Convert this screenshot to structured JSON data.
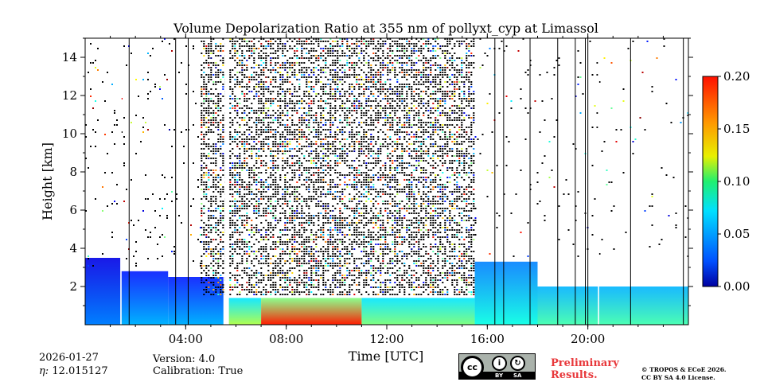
{
  "chart_data": {
    "type": "heatmap",
    "title": "Volume Depolarization Ratio at 355 nm of pollyxt_cyp at Limassol",
    "xlabel": "Time [UTC]",
    "ylabel": "Height [km]",
    "x_range_hours": [
      0,
      24
    ],
    "y_range_km": [
      0,
      15
    ],
    "x_ticks": [
      {
        "hour": 4,
        "label": "04:00"
      },
      {
        "hour": 8,
        "label": "08:00"
      },
      {
        "hour": 12,
        "label": "12:00"
      },
      {
        "hour": 16,
        "label": "16:00"
      },
      {
        "hour": 20,
        "label": "20:00"
      }
    ],
    "y_ticks": [
      {
        "value": 2,
        "label": "2"
      },
      {
        "value": 4,
        "label": "4"
      },
      {
        "value": 6,
        "label": "6"
      },
      {
        "value": 8,
        "label": "8"
      },
      {
        "value": 10,
        "label": "10"
      },
      {
        "value": 12,
        "label": "12"
      },
      {
        "value": 14,
        "label": "14"
      }
    ],
    "colorbar": {
      "range": [
        0.0,
        0.2
      ],
      "ticks": [
        {
          "value": 0.0,
          "label": "0.00"
        },
        {
          "value": 0.05,
          "label": "0.05"
        },
        {
          "value": 0.1,
          "label": "0.10"
        },
        {
          "value": 0.15,
          "label": "0.15"
        },
        {
          "value": 0.2,
          "label": "0.20"
        }
      ],
      "colormap": "jet"
    },
    "field_regions": [
      {
        "t0": 0.0,
        "t1": 1.4,
        "h_top": 3.5,
        "val_high": 0.02,
        "val_low": 0.05
      },
      {
        "t0": 1.4,
        "t1": 3.3,
        "h_top": 2.8,
        "val_high": 0.03,
        "val_low": 0.06
      },
      {
        "t0": 3.3,
        "t1": 5.5,
        "h_top": 2.5,
        "val_high": 0.03,
        "val_low": 0.06
      },
      {
        "t0": 5.7,
        "t1": 7.0,
        "h_top": 1.4,
        "val_high": 0.07,
        "val_low": 0.11
      },
      {
        "t0": 7.0,
        "t1": 11.0,
        "h_top": 1.4,
        "val_high": 0.1,
        "val_low": 0.17
      },
      {
        "t0": 11.0,
        "t1": 15.5,
        "h_top": 1.4,
        "val_high": 0.07,
        "val_low": 0.1
      },
      {
        "t0": 15.5,
        "t1": 18.0,
        "h_top": 3.3,
        "val_high": 0.05,
        "val_low": 0.08
      },
      {
        "t0": 18.0,
        "t1": 24.0,
        "h_top": 2.0,
        "val_high": 0.06,
        "val_low": 0.09
      }
    ],
    "noise_regions": [
      {
        "t0": 4.6,
        "t1": 15.5,
        "h0": 1.5,
        "h1": 15.0,
        "density": 0.55
      },
      {
        "t0": 0.0,
        "t1": 4.6,
        "h0": 3.0,
        "h1": 15.0,
        "density": 0.04
      },
      {
        "t0": 15.5,
        "t1": 24.0,
        "h0": 3.5,
        "h1": 15.0,
        "density": 0.02
      }
    ],
    "data_gaps": [
      {
        "t0": 5.55,
        "t1": 5.72
      },
      {
        "t0": 1.4,
        "t1": 1.45
      },
      {
        "t0": 20.4,
        "t1": 20.45
      }
    ],
    "profile_lines_hours": [
      1.75,
      3.6,
      4.1,
      16.3,
      16.65,
      17.7,
      18.8,
      19.5,
      19.9,
      20.0,
      21.7,
      23.8
    ]
  },
  "footer": {
    "date": "2026-01-27",
    "eta": "12.015127",
    "eta_symbol": "η: ",
    "version": "Version: 4.0",
    "calibration": "Calibration: True",
    "preliminary_line1": "Preliminary",
    "preliminary_line2": "Results.",
    "copyright_line1": "© TROPOS & ECoE 2026.",
    "copyright_line2": "CC BY SA 4.0 License.",
    "cc_main": "cc",
    "cc_by": "BY",
    "cc_sa": "SA"
  }
}
